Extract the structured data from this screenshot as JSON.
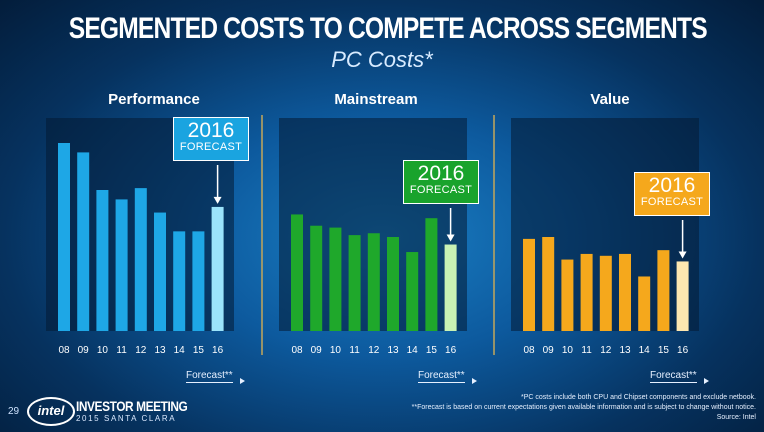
{
  "title": "SEGMENTED COSTS TO COMPETE ACROSS SEGMENTS",
  "subtitle": "PC Costs*",
  "panels": [
    {
      "name": "Performance",
      "forecast_year": "2016",
      "forecast_label": "FORECAST",
      "box_color": "#1aa4e0",
      "link": "Forecast**"
    },
    {
      "name": "Mainstream",
      "forecast_year": "2016",
      "forecast_label": "FORECAST",
      "box_color": "#19a32c",
      "link": "Forecast**"
    },
    {
      "name": "Value",
      "forecast_year": "2016",
      "forecast_label": "FORECAST",
      "box_color": "#f5a81c",
      "link": "Forecast**"
    }
  ],
  "chart_data": [
    {
      "type": "bar",
      "title": "Performance",
      "categories": [
        "08",
        "09",
        "10",
        "11",
        "12",
        "13",
        "14",
        "15",
        "16"
      ],
      "values": [
        100,
        95,
        75,
        70,
        76,
        63,
        53,
        53,
        66
      ],
      "forecast_index": 8,
      "colors": {
        "actual": "#1ea7e6",
        "forecast": "#9be4fb"
      }
    },
    {
      "type": "bar",
      "title": "Mainstream",
      "categories": [
        "08",
        "09",
        "10",
        "11",
        "12",
        "13",
        "14",
        "15",
        "16"
      ],
      "values": [
        62,
        56,
        55,
        51,
        52,
        50,
        42,
        60,
        46
      ],
      "forecast_index": 8,
      "colors": {
        "actual": "#1fa82b",
        "forecast": "#c9f2b4"
      }
    },
    {
      "type": "bar",
      "title": "Value",
      "categories": [
        "08",
        "09",
        "10",
        "11",
        "12",
        "13",
        "14",
        "15",
        "16"
      ],
      "values": [
        49,
        50,
        38,
        41,
        40,
        41,
        29,
        43,
        37
      ],
      "forecast_index": 8,
      "colors": {
        "actual": "#f5a81c",
        "forecast": "#fde7b0"
      }
    }
  ],
  "footer": {
    "page": "29",
    "logo": "intel",
    "event_line1": "INVESTOR MEETING",
    "event_line2": "2015 SANTA CLARA",
    "note1": "*PC costs include both CPU and Chipset components and exclude netbook.",
    "note2": "**Forecast is based on current expectations given available information and is subject to change without notice.",
    "source": "Source: Intel"
  }
}
